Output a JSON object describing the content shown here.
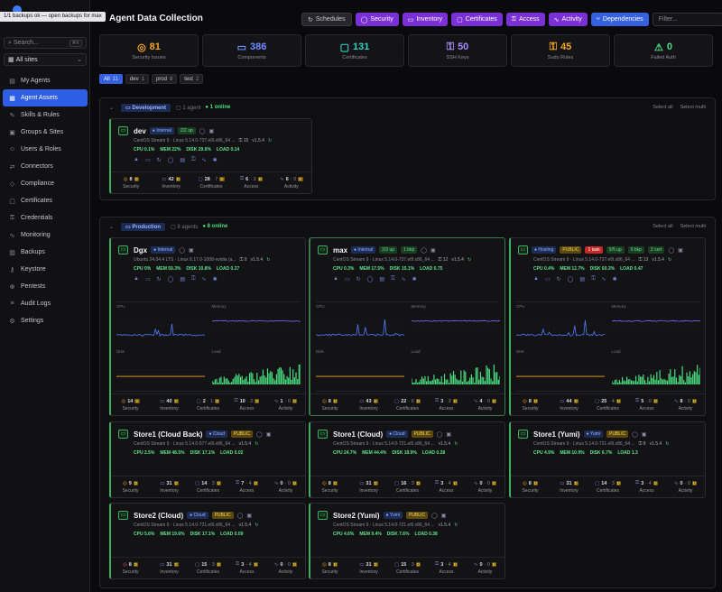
{
  "toast": "1/1 backups ok — open backups for max",
  "sidebar": {
    "search_placeholder": "Search...",
    "search_kbd": "⌘K",
    "site_selector": "All sites",
    "items": [
      {
        "label": "My Agents",
        "icon": "▤",
        "name": "my-agents"
      },
      {
        "label": "Agent Assets",
        "icon": "▦",
        "name": "agent-assets",
        "active": true
      },
      {
        "label": "Skills & Rules",
        "icon": "✎",
        "name": "skills-rules"
      },
      {
        "label": "Groups & Sites",
        "icon": "▣",
        "name": "groups-sites"
      },
      {
        "label": "Users & Roles",
        "icon": "☺",
        "name": "users-roles"
      },
      {
        "label": "Connectors",
        "icon": "⇄",
        "name": "connectors"
      },
      {
        "label": "Compliance",
        "icon": "◇",
        "name": "compliance"
      },
      {
        "label": "Certificates",
        "icon": "▢",
        "name": "certificates"
      },
      {
        "label": "Credentials",
        "icon": "⚿",
        "name": "credentials"
      },
      {
        "label": "Monitoring",
        "icon": "∿",
        "name": "monitoring"
      },
      {
        "label": "Backups",
        "icon": "▥",
        "name": "backups"
      },
      {
        "label": "Keystore",
        "icon": "⚷",
        "name": "keystore"
      },
      {
        "label": "Pentests",
        "icon": "⊕",
        "name": "pentests"
      },
      {
        "label": "Audit Logs",
        "icon": "≡",
        "name": "audit-logs"
      },
      {
        "label": "Settings",
        "icon": "⚙",
        "name": "settings"
      }
    ]
  },
  "header": {
    "title": "Agent Data Collection",
    "icon": "⛬"
  },
  "toolbar": {
    "buttons": [
      {
        "label": "Schedules",
        "icon": "↻",
        "style": "gray",
        "name": "schedules"
      },
      {
        "label": "Security",
        "icon": "◯",
        "style": "purple",
        "name": "security"
      },
      {
        "label": "Inventory",
        "icon": "▭",
        "style": "purple",
        "name": "inventory"
      },
      {
        "label": "Certificates",
        "icon": "▢",
        "style": "purple",
        "name": "certificates"
      },
      {
        "label": "Access",
        "icon": "⚿",
        "style": "purple",
        "name": "access"
      },
      {
        "label": "Activity",
        "icon": "∿",
        "style": "purple",
        "name": "activity"
      },
      {
        "label": "Dependencies",
        "icon": "⑂",
        "style": "blue",
        "name": "dependencies"
      }
    ],
    "filter_placeholder": "Filter..."
  },
  "stats": [
    {
      "value": "81",
      "label": "Security Issues",
      "color": "#f5a524",
      "icon": "◎"
    },
    {
      "value": "386",
      "label": "Components",
      "color": "#6c8cff",
      "icon": "▭"
    },
    {
      "value": "131",
      "label": "Certificates",
      "color": "#2dd4bf",
      "icon": "▢"
    },
    {
      "value": "50",
      "label": "SSH Keys",
      "color": "#a78bfa",
      "icon": "⚿"
    },
    {
      "value": "45",
      "label": "Sudo Rules",
      "color": "#f5a524",
      "icon": "⚿"
    },
    {
      "value": "0",
      "label": "Failed Auth",
      "color": "#4ade80",
      "icon": "⚠"
    }
  ],
  "chips": [
    {
      "label": "All",
      "count": "11",
      "active": true
    },
    {
      "label": "dev",
      "count": "1"
    },
    {
      "label": "prod",
      "count": "8"
    },
    {
      "label": "test",
      "count": "2"
    }
  ],
  "groups": [
    {
      "name": "Development",
      "meta": "1 agent",
      "online": "1 online",
      "select_all": "Select all",
      "select_multi": "Select multi"
    },
    {
      "name": "Production",
      "meta": "8 agents",
      "online": "8 online",
      "select_all": "Select all",
      "select_multi": "Select multi"
    }
  ],
  "footer_labels": [
    "Security",
    "Inventory",
    "Certificates",
    "Access",
    "Activity"
  ],
  "chart_labels": {
    "cpu": "CPU",
    "memory": "Memory",
    "disk": "Disk",
    "load": "Load"
  },
  "cards": [
    {
      "name": "dev",
      "badges": [
        [
          "Internal",
          "int"
        ],
        [
          "2/2 up",
          "up"
        ]
      ],
      "os": "CentOS Stream 9 · Linux 5.14.0-737.el9.x86_64 ...",
      "keys": "15",
      "ver": "v1.5.4",
      "metrics": {
        "cpu": "CPU 0.1%",
        "mem": "MEM 22%",
        "disk": "DISK 29.6%",
        "load": "LOAD 0.14"
      },
      "foot": [
        [
          "8",
          "D",
          "warn"
        ],
        [
          "42",
          "D",
          ""
        ],
        [
          "28",
          "7",
          "D"
        ],
        [
          "6",
          "3",
          "D"
        ],
        [
          "6",
          "0",
          "D"
        ]
      ]
    },
    {
      "name": "Dgx",
      "badges": [
        [
          "Internal",
          "int"
        ]
      ],
      "os": "Ubuntu 24.04.4 LTS · Linux 6.17.0-1008-nvidia (a...",
      "keys": "9",
      "ver": "v1.5.4",
      "metrics": {
        "cpu": "CPU 0%",
        "mem": "MEM 59.3%",
        "disk": "DISK 10.8%",
        "load": "LOAD 0.37"
      },
      "foot": [
        [
          "14",
          "D",
          "warn"
        ],
        [
          "40",
          "D",
          ""
        ],
        [
          "2",
          "1",
          "D"
        ],
        [
          "10",
          "2",
          "D"
        ],
        [
          "1",
          "0",
          "D"
        ]
      ],
      "charts": {
        "cpu_ticks": [
          "100%",
          "0%"
        ],
        "cpu_times": [
          "09:25",
          "09:42",
          "20:54"
        ],
        "mem_ticks": [],
        "mem_times": [
          "09:25",
          "09:42",
          "20:54"
        ],
        "disk_ticks": [
          "25%",
          "25%"
        ],
        "disk_times": [
          "09:25",
          "09:42",
          "20:54"
        ],
        "load_ticks": [
          "0.9",
          "0.5"
        ],
        "load_times": [
          "09:25",
          "09:42",
          "20:54"
        ]
      }
    },
    {
      "name": "max",
      "badges": [
        [
          "Internal",
          "int"
        ],
        [
          "2/3 up",
          "up"
        ],
        [
          "1 bkp",
          "up"
        ]
      ],
      "os": "CentOS Stream 9 · Linux 5.14.0-737.el9.x86_64 ...",
      "keys": "12",
      "ver": "v1.5.4",
      "metrics": {
        "cpu": "CPU 0.3%",
        "mem": "MEM 17.5%",
        "disk": "DISK 15.1%",
        "load": "LOAD 0.75"
      },
      "foot": [
        [
          "8",
          "D",
          "warn"
        ],
        [
          "43",
          "D",
          ""
        ],
        [
          "22",
          "6",
          "D"
        ],
        [
          "3",
          "3",
          "D"
        ],
        [
          "4",
          "0",
          "D"
        ]
      ],
      "charts": {
        "cpu_ticks": [
          "100%",
          "0%"
        ],
        "cpu_times": [
          "21:49",
          "09:11",
          "20:56"
        ],
        "mem_ticks": [
          "100%",
          "0%"
        ],
        "mem_times": [
          "21:49",
          "09:11",
          "20:56"
        ],
        "disk_ticks": [
          "100%",
          "25%"
        ],
        "disk_times": [
          "21:49",
          "09:11",
          "20:56"
        ],
        "load_ticks": [
          "2.2",
          "1.1"
        ],
        "load_times": [
          "21:49",
          "09:11",
          "20:56"
        ]
      }
    },
    {
      "name": "",
      "badges": [
        [
          "Hosting",
          "int"
        ],
        [
          "PUBLIC",
          "pub"
        ],
        [
          "1 task",
          "task"
        ],
        [
          "5/5 up",
          "up"
        ],
        [
          "5 bkp",
          "up"
        ],
        [
          "2 cert",
          "up"
        ]
      ],
      "os": "CentOS Stream 9 · Linux 5.14.0-737.el9.x86_64 ...",
      "keys": "13",
      "ver": "v1.5.4",
      "metrics": {
        "cpu": "CPU 0.4%",
        "mem": "MEM 12.7%",
        "disk": "DISK 60.3%",
        "load": "LOAD 0.47"
      },
      "foot": [
        [
          "8",
          "D",
          "warn"
        ],
        [
          "44",
          "D",
          ""
        ],
        [
          "25",
          "4",
          "D"
        ],
        [
          "5",
          "0",
          "D"
        ],
        [
          "8",
          "0",
          "D"
        ]
      ],
      "charts": {
        "cpu_ticks": [
          "100%",
          "0%"
        ],
        "cpu_times": [
          "22:25",
          "09:25",
          "20:54"
        ],
        "mem_ticks": [
          "100%",
          "0%"
        ],
        "mem_times": [
          "22:25",
          "09:25",
          "20:54"
        ],
        "disk_ticks": [
          "100%",
          "25%"
        ],
        "disk_times": [
          "22:25",
          "09:25",
          "20:54"
        ],
        "load_ticks": [
          "",
          "0.5"
        ],
        "load_times": [
          "22:25",
          "09:25",
          "20:54"
        ]
      }
    },
    {
      "name": "Store1 (Cloud Back)",
      "badges": [
        [
          "Cloud",
          "int"
        ],
        [
          "PUBLIC",
          "pub"
        ]
      ],
      "os": "CentOS Stream 9 · Linux 5.14.0-577.el9.x86_64 ...",
      "keys": "",
      "ver": "v1.5.4",
      "metrics": {
        "cpu": "CPU 2.5%",
        "mem": "MEM 48.5%",
        "disk": "DISK 17.1%",
        "load": "LOAD 0.02"
      },
      "foot": [
        [
          "9",
          "D",
          "warn"
        ],
        [
          "31",
          "D",
          ""
        ],
        [
          "14",
          "3",
          "D"
        ],
        [
          "7",
          "4",
          "D"
        ],
        [
          "0",
          "0",
          "D"
        ]
      ]
    },
    {
      "name": "Store1 (Cloud)",
      "badges": [
        [
          "Cloud",
          "int"
        ],
        [
          "PUBLIC",
          "pub"
        ]
      ],
      "os": "CentOS Stream 9 · Linux 5.14.0-721.el9.x86_64 ...",
      "keys": "",
      "ver": "v1.5.4",
      "metrics": {
        "cpu": "CPU 24.7%",
        "mem": "MEM 44.4%",
        "disk": "DISK 18.9%",
        "load": "LOAD 0.28"
      },
      "foot": [
        [
          "8",
          "D",
          "warn"
        ],
        [
          "31",
          "D",
          ""
        ],
        [
          "16",
          "3",
          "D"
        ],
        [
          "3",
          "4",
          "D"
        ],
        [
          "0",
          "0",
          "D"
        ]
      ]
    },
    {
      "name": "Store1 (Yumi)",
      "badges": [
        [
          "Yumi",
          "int"
        ],
        [
          "PUBLIC",
          "pub"
        ]
      ],
      "os": "CentOS Stream 9 · Linux 5.14.0-721.el9.x86_64 ...",
      "keys": "8",
      "ver": "v1.5.4",
      "metrics": {
        "cpu": "CPU 4.9%",
        "mem": "MEM 10.9%",
        "disk": "DISK 6.7%",
        "load": "LOAD 1.3"
      },
      "foot": [
        [
          "8",
          "D",
          "warn"
        ],
        [
          "31",
          "D",
          ""
        ],
        [
          "14",
          "3",
          "D"
        ],
        [
          "3",
          "4",
          "D"
        ],
        [
          "0",
          "0",
          "D"
        ]
      ]
    },
    {
      "name": "Store2 (Cloud)",
      "badges": [
        [
          "Cloud",
          "int"
        ],
        [
          "PUBLIC",
          "pub"
        ]
      ],
      "os": "CentOS Stream 9 · Linux 5.14.0-721.el9.x86_64 ...",
      "keys": "",
      "ver": "v1.5.4",
      "metrics": {
        "cpu": "CPU 5.6%",
        "mem": "MEM 19.6%",
        "disk": "DISK 17.1%",
        "load": "LOAD 0.09"
      },
      "foot": [
        [
          "8",
          "D",
          "red"
        ],
        [
          "31",
          "D",
          ""
        ],
        [
          "15",
          "3",
          "D"
        ],
        [
          "3",
          "4",
          "D"
        ],
        [
          "0",
          "0",
          "D"
        ]
      ]
    },
    {
      "name": "Store2 (Yumi)",
      "badges": [
        [
          "Yumi",
          "int"
        ],
        [
          "PUBLIC",
          "pub"
        ]
      ],
      "os": "CentOS Stream 9 · Linux 5.14.0-721.el9.x86_64 ...",
      "keys": "",
      "ver": "v1.5.4",
      "metrics": {
        "cpu": "CPU 4.6%",
        "mem": "MEM 9.4%",
        "disk": "DISK 7.6%",
        "load": "LOAD 0.38"
      },
      "foot": [
        [
          "8",
          "D",
          "warn"
        ],
        [
          "31",
          "D",
          ""
        ],
        [
          "15",
          "3",
          "D"
        ],
        [
          "3",
          "4",
          "D"
        ],
        [
          "0",
          "0",
          "D"
        ]
      ]
    }
  ]
}
